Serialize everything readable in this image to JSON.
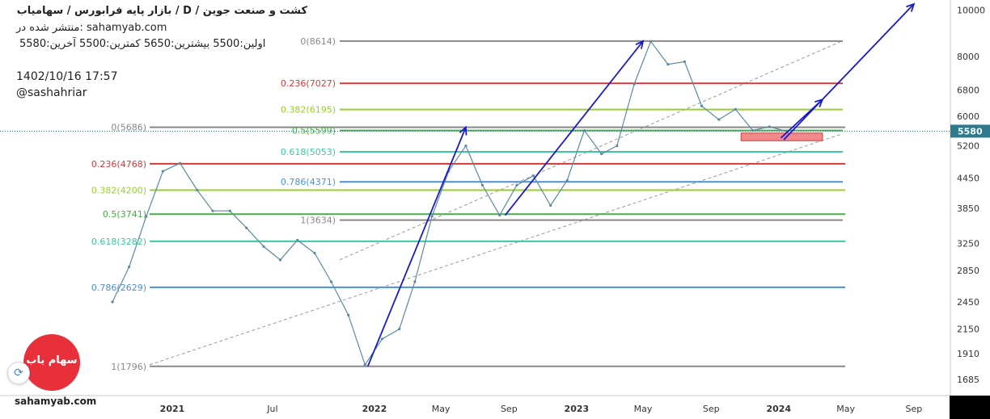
{
  "header": {
    "title": "کشت و صنعت جوین / D / بازار پایه فرابورس / سهامیاب",
    "published": "منتشر شده در: sahamyab.com",
    "ohlc": "اولین:5500  بیشترین:5650  کمترین:5500  آخرین:5580",
    "datetime": "1402/10/16 17:57",
    "author": "@sashahriar",
    "site": "sahamyab.com",
    "logo_text": "سهام یاب"
  },
  "colors": {
    "arrow": "#1a1acc",
    "price_line": "#5a8aa0",
    "last_price_bg": "#2c7a8c",
    "zone": "#f28a8a",
    "fib_0": "#888888",
    "fib_236": "#d23a3a",
    "fib_382": "#9acd32",
    "fib_5": "#43b043",
    "fib_618": "#3cc8a0",
    "fib_786": "#4a90d9",
    "fib_1": "#888888"
  },
  "chart_data": {
    "type": "line",
    "title": "کشت و صنعت جوین",
    "y_scale": "log",
    "ylim": [
      1560,
      10500
    ],
    "y_ticks": [
      1685,
      1910,
      2150,
      2450,
      2850,
      3250,
      3850,
      4450,
      5200,
      6000,
      6800,
      8000,
      10000
    ],
    "x_ticks": [
      "2021",
      "Jul",
      "2022",
      "May",
      "Sep",
      "2023",
      "May",
      "Sep",
      "2024",
      "May",
      "Sep"
    ],
    "last_price": 5580,
    "series": [
      {
        "values": [
          {
            "x": "2020-09",
            "y": 2450
          },
          {
            "x": "2020-10",
            "y": 2900
          },
          {
            "x": "2020-11",
            "y": 3700
          },
          {
            "x": "2020-12",
            "y": 4600
          },
          {
            "x": "2021-01",
            "y": 4780
          },
          {
            "x": "2021-02",
            "y": 4200
          },
          {
            "x": "2021-03",
            "y": 3800
          },
          {
            "x": "2021-04",
            "y": 3800
          },
          {
            "x": "2021-05",
            "y": 3500
          },
          {
            "x": "2021-06",
            "y": 3200
          },
          {
            "x": "2021-07",
            "y": 3000
          },
          {
            "x": "2021-08",
            "y": 3300
          },
          {
            "x": "2021-09",
            "y": 3100
          },
          {
            "x": "2021-10",
            "y": 2700
          },
          {
            "x": "2021-11",
            "y": 2300
          },
          {
            "x": "2021-12",
            "y": 1810
          },
          {
            "x": "2022-01",
            "y": 2050
          },
          {
            "x": "2022-02",
            "y": 2150
          },
          {
            "x": "2022-03",
            "y": 2700
          },
          {
            "x": "2022-04",
            "y": 3700
          },
          {
            "x": "2022-05",
            "y": 4600
          },
          {
            "x": "2022-06",
            "y": 5200
          },
          {
            "x": "2022-07",
            "y": 4300
          },
          {
            "x": "2022-08",
            "y": 3720
          },
          {
            "x": "2022-09",
            "y": 4300
          },
          {
            "x": "2022-10",
            "y": 4500
          },
          {
            "x": "2022-11",
            "y": 3900
          },
          {
            "x": "2022-12",
            "y": 4400
          },
          {
            "x": "2023-01",
            "y": 5600
          },
          {
            "x": "2023-02",
            "y": 5000
          },
          {
            "x": "2023-03",
            "y": 5200
          },
          {
            "x": "2023-04",
            "y": 7000
          },
          {
            "x": "2023-05",
            "y": 8600
          },
          {
            "x": "2023-06",
            "y": 7700
          },
          {
            "x": "2023-07",
            "y": 7800
          },
          {
            "x": "2023-08",
            "y": 6300
          },
          {
            "x": "2023-09",
            "y": 5900
          },
          {
            "x": "2023-10",
            "y": 6200
          },
          {
            "x": "2023-11",
            "y": 5600
          },
          {
            "x": "2023-12",
            "y": 5700
          },
          {
            "x": "2024-01",
            "y": 5580
          }
        ]
      }
    ],
    "fib_retracement_1": {
      "levels": [
        {
          "label": "0(5686)",
          "ratio": "0",
          "value": 5686
        },
        {
          "label": "0.236(4768)",
          "ratio": "0.236",
          "value": 4768
        },
        {
          "label": "0.382(4200)",
          "ratio": "0.382",
          "value": 4200
        },
        {
          "label": "0.5(3741)",
          "ratio": "0.5",
          "value": 3741
        },
        {
          "label": "0.618(3282)",
          "ratio": "0.618",
          "value": 3282
        },
        {
          "label": "0.786(2629)",
          "ratio": "0.786",
          "value": 2629
        },
        {
          "label": "1(1796)",
          "ratio": "1",
          "value": 1796
        }
      ]
    },
    "fib_retracement_2": {
      "levels": [
        {
          "label": "0(8614)",
          "ratio": "0",
          "value": 8614
        },
        {
          "label": "0.236(7027)",
          "ratio": "0.236",
          "value": 7027
        },
        {
          "label": "0.382(6195)",
          "ratio": "0.382",
          "value": 6195
        },
        {
          "label": "0.5(5599)",
          "ratio": "0.5",
          "value": 5599
        },
        {
          "label": "0.618(5053)",
          "ratio": "0.618",
          "value": 5053
        },
        {
          "label": "0.786(4371)",
          "ratio": "0.786",
          "value": 4371
        },
        {
          "label": "1(3634)",
          "ratio": "1",
          "value": 3634
        }
      ]
    },
    "support_zone": {
      "from": "2023-10",
      "to": "2024-03",
      "low": 5330,
      "high": 5530
    }
  }
}
